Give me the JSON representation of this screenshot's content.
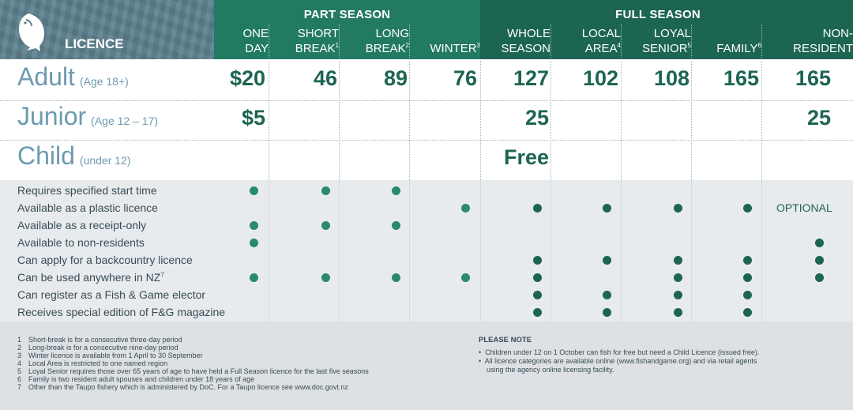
{
  "header": {
    "licence_label": "LICENCE",
    "part_season_title": "PART SEASON",
    "full_season_title": "FULL SEASON",
    "columns": [
      {
        "line1": "ONE",
        "line2": "DAY",
        "sup": ""
      },
      {
        "line1": "SHORT",
        "line2": "BREAK",
        "sup": "1"
      },
      {
        "line1": "LONG",
        "line2": "BREAK",
        "sup": "2"
      },
      {
        "line1": "",
        "line2": "WINTER",
        "sup": "3"
      },
      {
        "line1": "WHOLE",
        "line2": "SEASON",
        "sup": ""
      },
      {
        "line1": "LOCAL",
        "line2": "AREA",
        "sup": "4"
      },
      {
        "line1": "LOYAL",
        "line2": "SENIOR",
        "sup": "5"
      },
      {
        "line1": "",
        "line2": "FAMILY",
        "sup": "6"
      },
      {
        "line1": "NON-",
        "line2": "RESIDENT",
        "sup": ""
      }
    ]
  },
  "rows": [
    {
      "label": "Adult",
      "sub": "(Age 18+)",
      "prices": [
        "$20",
        "46",
        "89",
        "76",
        "127",
        "102",
        "108",
        "165",
        "165"
      ]
    },
    {
      "label": "Junior",
      "sub": "(Age 12 – 17)",
      "prices": [
        "$5",
        "",
        "",
        "",
        "25",
        "",
        "",
        "",
        "25"
      ]
    },
    {
      "label": "Child",
      "sub": "(under 12)",
      "prices": [
        "",
        "",
        "",
        "",
        "Free",
        "",
        "",
        "",
        ""
      ]
    }
  ],
  "features": [
    {
      "label": "Requires specified start time",
      "cols": [
        0,
        1,
        2
      ]
    },
    {
      "label": "Available as a plastic licence",
      "cols": [
        3,
        4,
        5,
        6,
        7
      ],
      "optional_col": 8
    },
    {
      "label": "Available as a receipt-only",
      "cols": [
        0,
        1,
        2
      ]
    },
    {
      "label": "Available to non-residents",
      "cols": [
        0,
        8
      ]
    },
    {
      "label": "Can apply for a backcountry licence",
      "cols": [
        4,
        5,
        6,
        7,
        8
      ]
    },
    {
      "label": "Can be used anywhere in NZ",
      "sup": "7",
      "cols": [
        0,
        1,
        2,
        3,
        4,
        6,
        7,
        8
      ]
    },
    {
      "label": "Can register as a Fish & Game elector",
      "cols": [
        4,
        5,
        6,
        7
      ]
    },
    {
      "label": "Receives special edition of F&G magazine",
      "cols": [
        4,
        5,
        6,
        7
      ]
    }
  ],
  "optional_text": "OPTIONAL",
  "footnotes": [
    {
      "n": "1",
      "text": "Short-break is for a consecutive three-day period"
    },
    {
      "n": "2",
      "text": "Long-break is for a consecutive nine-day period"
    },
    {
      "n": "3",
      "text": "Winter licence is available from 1 April to 30 September"
    },
    {
      "n": "4",
      "text": "Local Area is restricted to one named region"
    },
    {
      "n": "5",
      "text": "Loyal Senior requires those over 65 years of age to have held a Full Season licence for the last five seasons"
    },
    {
      "n": "6",
      "text": "Family is two resident adult spouses and children under 18 years of age"
    },
    {
      "n": "7",
      "text": "Other than the Taupo fishery which is administered by DoC.  For a Taupo licence see www.doc.govt.nz"
    }
  ],
  "please_note": {
    "title": "PLEASE NOTE",
    "items": [
      "•  Children under 12 on 1 October can fish for free but need a Child Licence (issued free).",
      "•  All licence categories are available online (www.fishandgame.org) and via retail agents",
      "    using the agency online licensing facility."
    ]
  },
  "colors": {
    "part_header": "#237a63",
    "full_header": "#1d6553",
    "licence_header": "#5b7f8c",
    "price_text": "#1d6553",
    "row_label": "#6d9bb0",
    "dot_part": "#2a8a6c",
    "dot_full": "#1d6553",
    "feature_bg": "#e7ebee",
    "footer_bg": "#dde1e4"
  }
}
